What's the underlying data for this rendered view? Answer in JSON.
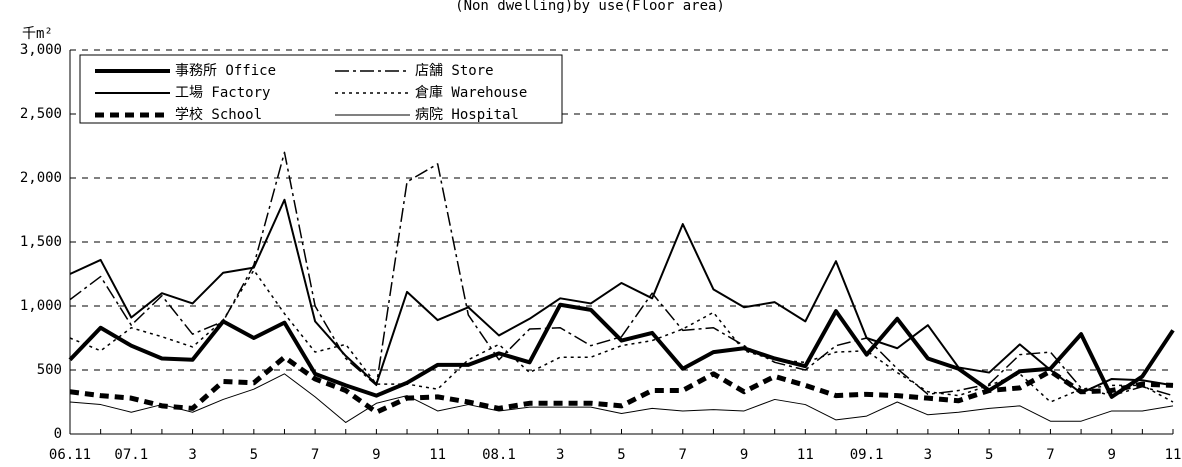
{
  "chart_data": {
    "type": "line",
    "title": "(Non dwelling)by use(Floor area)",
    "y_label": "千m²",
    "categories": [
      "06.11",
      null,
      "07.1",
      null,
      "3",
      null,
      "5",
      null,
      "7",
      null,
      "9",
      null,
      "11",
      null,
      "08.1",
      null,
      "3",
      null,
      "5",
      null,
      "7",
      null,
      "9",
      null,
      "11",
      null,
      "09.1",
      null,
      "3",
      null,
      "5",
      null,
      "7",
      null,
      "9",
      null,
      "11"
    ],
    "ylim": [
      0,
      3000
    ],
    "yticks": [
      0,
      500,
      {
        "value": 1000,
        "label": "1,000"
      },
      {
        "value": 1500,
        "label": "1,500"
      },
      {
        "value": 2000,
        "label": "2,000"
      },
      {
        "value": 2500,
        "label": "2,500"
      },
      {
        "value": 3000,
        "label": "3,000"
      }
    ],
    "grid": true,
    "legend": "upper left",
    "series": [
      {
        "name": "事務所 Office",
        "color": "#000000",
        "width": 4,
        "dash": "solid",
        "values": [
          580,
          830,
          690,
          590,
          580,
          880,
          750,
          870,
          470,
          380,
          300,
          400,
          540,
          540,
          630,
          560,
          1010,
          970,
          730,
          790,
          510,
          640,
          670,
          590,
          530,
          960,
          620,
          900,
          590,
          510,
          340,
          490,
          510,
          780,
          290,
          450,
          810
        ]
      },
      {
        "name": "店舗 Store",
        "color": "#000000",
        "width": 1.5,
        "dash": "dashdot",
        "values": [
          1050,
          1230,
          850,
          1080,
          780,
          880,
          1320,
          2200,
          1000,
          590,
          380,
          1970,
          2110,
          930,
          580,
          820,
          830,
          690,
          760,
          1100,
          810,
          830,
          690,
          560,
          500,
          690,
          750,
          510,
          310,
          340,
          390,
          620,
          640,
          360,
          300,
          370,
          300
        ]
      },
      {
        "name": "工場 Factory",
        "color": "#000000",
        "width": 2,
        "dash": "solid",
        "values": [
          1250,
          1360,
          910,
          1100,
          1020,
          1260,
          1300,
          1830,
          880,
          610,
          390,
          1110,
          890,
          990,
          770,
          900,
          1060,
          1020,
          1180,
          1060,
          1640,
          1130,
          990,
          1030,
          880,
          1350,
          750,
          670,
          850,
          520,
          480,
          700,
          500,
          320,
          430,
          420,
          380
        ]
      },
      {
        "name": "倉庫 Warehouse",
        "color": "#000000",
        "width": 1.5,
        "dash": "dotted",
        "values": [
          750,
          650,
          830,
          760,
          680,
          890,
          1280,
          940,
          640,
          700,
          390,
          390,
          350,
          580,
          700,
          480,
          600,
          600,
          690,
          730,
          820,
          950,
          650,
          580,
          560,
          640,
          650,
          480,
          330,
          300,
          380,
          470,
          250,
          350,
          380,
          380,
          250
        ]
      },
      {
        "name": "学校 School",
        "color": "#000000",
        "width": 5,
        "dash": "dashed",
        "values": [
          330,
          300,
          280,
          220,
          200,
          410,
          400,
          600,
          430,
          340,
          170,
          280,
          290,
          250,
          200,
          240,
          240,
          240,
          220,
          340,
          340,
          470,
          330,
          450,
          380,
          300,
          310,
          300,
          280,
          260,
          340,
          360,
          490,
          330,
          340,
          390,
          380
        ]
      },
      {
        "name": "病院 Hospital",
        "color": "#000000",
        "width": 1,
        "dash": "solid",
        "values": [
          250,
          230,
          170,
          230,
          170,
          270,
          350,
          470,
          290,
          90,
          240,
          300,
          180,
          230,
          180,
          210,
          210,
          210,
          160,
          200,
          180,
          190,
          180,
          270,
          230,
          110,
          140,
          250,
          150,
          170,
          200,
          220,
          100,
          100,
          180,
          180,
          220
        ]
      }
    ]
  }
}
